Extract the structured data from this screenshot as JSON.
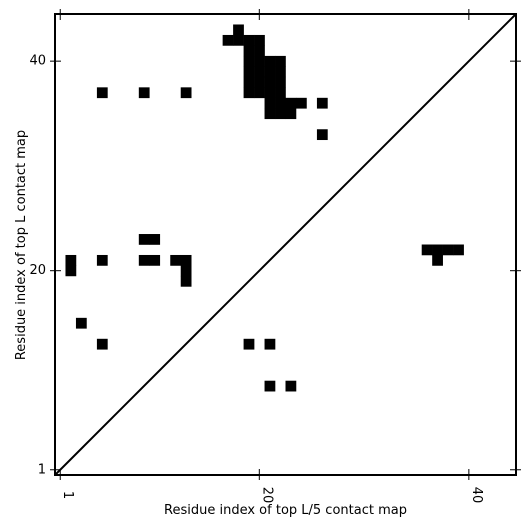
{
  "chart_data": {
    "type": "heatmap",
    "title": "",
    "xlabel": "Residue index of top L/5 contact map",
    "ylabel": "Residue index of top L contact map",
    "xlim": [
      0.5,
      44.5
    ],
    "ylim": [
      0.5,
      44.5
    ],
    "x_ticks": [
      1,
      20,
      40
    ],
    "y_ticks": [
      1,
      20,
      40
    ],
    "x_tick_labels": [
      "1",
      "20",
      "40"
    ],
    "y_tick_labels": [
      "1",
      "20",
      "40"
    ],
    "diagonal": {
      "from": [
        0.5,
        0.5
      ],
      "to": [
        44.5,
        44.5
      ]
    },
    "grid": false,
    "cell_color": "#000000",
    "upper_contacts": [
      [
        5,
        37
      ],
      [
        9,
        37
      ],
      [
        13,
        37
      ],
      [
        18,
        43
      ],
      [
        17,
        42
      ],
      [
        18,
        42
      ],
      [
        19,
        42
      ],
      [
        20,
        42
      ],
      [
        19,
        41
      ],
      [
        20,
        41
      ],
      [
        19,
        40
      ],
      [
        20,
        40
      ],
      [
        21,
        40
      ],
      [
        22,
        40
      ],
      [
        19,
        39
      ],
      [
        20,
        39
      ],
      [
        21,
        39
      ],
      [
        22,
        39
      ],
      [
        19,
        38
      ],
      [
        20,
        38
      ],
      [
        21,
        38
      ],
      [
        22,
        38
      ],
      [
        19,
        37
      ],
      [
        20,
        37
      ],
      [
        21,
        37
      ],
      [
        22,
        37
      ],
      [
        21,
        36
      ],
      [
        22,
        36
      ],
      [
        23,
        36
      ],
      [
        24,
        36
      ],
      [
        26,
        36
      ],
      [
        21,
        35
      ],
      [
        22,
        35
      ],
      [
        23,
        35
      ],
      [
        26,
        33
      ],
      [
        9,
        23
      ],
      [
        10,
        23
      ],
      [
        2,
        21
      ],
      [
        5,
        21
      ],
      [
        9,
        21
      ],
      [
        10,
        21
      ],
      [
        12,
        21
      ],
      [
        13,
        21
      ],
      [
        2,
        20
      ],
      [
        13,
        20
      ],
      [
        13,
        19
      ],
      [
        3,
        15
      ],
      [
        5,
        13
      ],
      [
        37,
        22
      ],
      [
        38,
        22
      ],
      [
        39,
        22
      ],
      [
        36,
        22
      ]
    ],
    "lower_contacts": [
      [
        19,
        13
      ],
      [
        21,
        13
      ],
      [
        21,
        9
      ],
      [
        23,
        9
      ],
      [
        37,
        21
      ]
    ]
  }
}
